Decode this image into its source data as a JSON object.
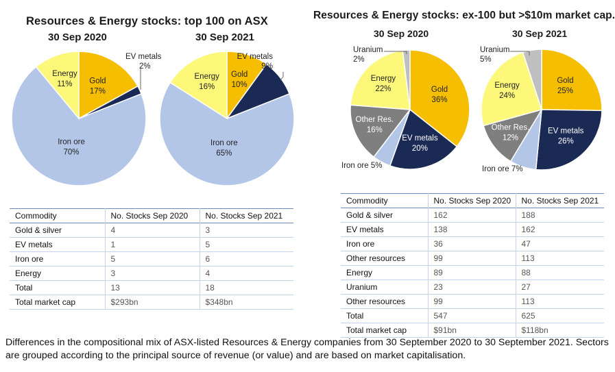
{
  "left": {
    "title": "Resources & Energy stocks: top 100 on ASX",
    "date_2020": "30 Sep 2020",
    "date_2021": "30 Sep 2021"
  },
  "right": {
    "title": "Resources & Energy stocks: ex-100 but >$10m market cap.",
    "date_2020": "30 Sep 2020",
    "date_2021": "30 Sep 2021"
  },
  "colors": {
    "gold": "#f5be00",
    "ev_metals": "#1b2a55",
    "iron_ore": "#b3c6e7",
    "energy": "#fdf77a",
    "other_res": "#7f7f7f",
    "uranium": "#bfbfbf"
  },
  "chart_data": [
    {
      "id": "pie-left-2020",
      "type": "pie",
      "title": "30 Sep 2020",
      "slices": [
        {
          "name": "Gold",
          "value": 17,
          "label": "17%",
          "key": "gold"
        },
        {
          "name": "EV metals",
          "value": 2,
          "label": "2%",
          "key": "ev_metals"
        },
        {
          "name": "Iron ore",
          "value": 70,
          "label": "70%",
          "key": "iron_ore"
        },
        {
          "name": "Energy",
          "value": 11,
          "label": "11%",
          "key": "energy"
        }
      ]
    },
    {
      "id": "pie-left-2021",
      "type": "pie",
      "title": "30 Sep 2021",
      "slices": [
        {
          "name": "Gold",
          "value": 10,
          "label": "10%",
          "key": "gold"
        },
        {
          "name": "EV metals",
          "value": 9,
          "label": "9%",
          "key": "ev_metals"
        },
        {
          "name": "Iron ore",
          "value": 65,
          "label": "65%",
          "key": "iron_ore"
        },
        {
          "name": "Energy",
          "value": 16,
          "label": "16%",
          "key": "energy"
        }
      ]
    },
    {
      "id": "pie-right-2020",
      "type": "pie",
      "title": "30 Sep 2020",
      "slices": [
        {
          "name": "Gold",
          "value": 36,
          "label": "36%",
          "key": "gold"
        },
        {
          "name": "EV metals",
          "value": 20,
          "label": "20%",
          "key": "ev_metals"
        },
        {
          "name": "Iron ore",
          "value": 5,
          "label": "5%",
          "key": "iron_ore"
        },
        {
          "name": "Other Res.",
          "value": 16,
          "label": "16%",
          "key": "other_res"
        },
        {
          "name": "Energy",
          "value": 22,
          "label": "22%",
          "key": "energy"
        },
        {
          "name": "Uranium",
          "value": 2,
          "label": "2%",
          "key": "uranium"
        }
      ]
    },
    {
      "id": "pie-right-2021",
      "type": "pie",
      "title": "30 Sep 2021",
      "slices": [
        {
          "name": "Gold",
          "value": 25,
          "label": "25%",
          "key": "gold"
        },
        {
          "name": "EV metals",
          "value": 26,
          "label": "26%",
          "key": "ev_metals"
        },
        {
          "name": "Iron ore",
          "value": 7,
          "label": "7%",
          "key": "iron_ore"
        },
        {
          "name": "Other Res.",
          "value": 12,
          "label": "12%",
          "key": "other_res"
        },
        {
          "name": "Energy",
          "value": 24,
          "label": "24%",
          "key": "energy"
        },
        {
          "name": "Uranium",
          "value": 5,
          "label": "5%",
          "key": "uranium"
        }
      ]
    }
  ],
  "tables": {
    "left": {
      "headers": [
        "Commodity",
        "No. Stocks Sep 2020",
        "No. Stocks  Sep 2021"
      ],
      "rows": [
        [
          "Gold & silver",
          "4",
          "3"
        ],
        [
          "EV metals",
          "1",
          "5"
        ],
        [
          "Iron ore",
          "5",
          "6"
        ],
        [
          "Energy",
          "3",
          "4"
        ],
        [
          "Total",
          "13",
          "18"
        ],
        [
          "Total market cap",
          "$293bn",
          "$348bn"
        ]
      ]
    },
    "right": {
      "headers": [
        "Commodity",
        "No. Stocks Sep 2020",
        "No. Stocks Sep 2021"
      ],
      "rows": [
        [
          "Gold & silver",
          "162",
          "188"
        ],
        [
          "EV metals",
          "138",
          "162"
        ],
        [
          "Iron ore",
          "36",
          "47"
        ],
        [
          "Other resources",
          "99",
          "113"
        ],
        [
          "Energy",
          "89",
          "88"
        ],
        [
          "Uranium",
          "23",
          "27"
        ],
        [
          "Other resources",
          "99",
          "113"
        ],
        [
          "Total",
          "547",
          "625"
        ],
        [
          "Total market cap",
          "$91bn",
          "$118bn"
        ]
      ]
    }
  },
  "caption": "Differences in the compositional mix of ASX-listed Resources & Energy companies from 30 September 2020 to 30 September 2021. Sectors are grouped according to the principal source of revenue (or value) and are based on market capitalisation."
}
